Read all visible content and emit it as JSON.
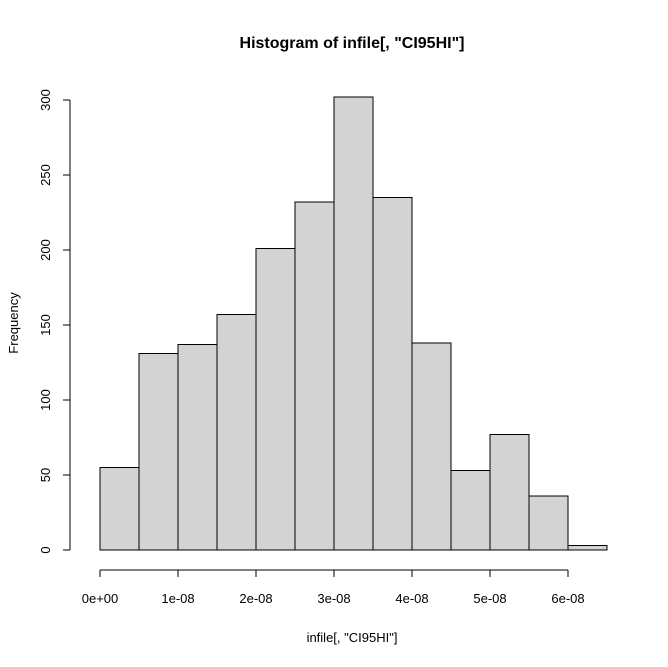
{
  "chart_data": {
    "type": "bar",
    "title": "Histogram of infile[, \"CI95HI\"]",
    "xlabel": "infile[, \"CI95HI\"]",
    "ylabel": "Frequency",
    "bins": [
      {
        "start": 0.0,
        "end": 5e-09,
        "count": 55
      },
      {
        "start": 5e-09,
        "end": 1e-08,
        "count": 131
      },
      {
        "start": 1e-08,
        "end": 1.5e-08,
        "count": 137
      },
      {
        "start": 1.5e-08,
        "end": 2e-08,
        "count": 157
      },
      {
        "start": 2e-08,
        "end": 2.5e-08,
        "count": 201
      },
      {
        "start": 2.5e-08,
        "end": 3e-08,
        "count": 232
      },
      {
        "start": 3e-08,
        "end": 3.5e-08,
        "count": 302
      },
      {
        "start": 3.5e-08,
        "end": 4e-08,
        "count": 235
      },
      {
        "start": 4e-08,
        "end": 4.5e-08,
        "count": 138
      },
      {
        "start": 4.5e-08,
        "end": 5e-08,
        "count": 53
      },
      {
        "start": 5e-08,
        "end": 5.5e-08,
        "count": 77
      },
      {
        "start": 5.5e-08,
        "end": 6e-08,
        "count": 36
      },
      {
        "start": 6e-08,
        "end": 6.5e-08,
        "count": 3
      }
    ],
    "x_ticks": [
      {
        "value": 0.0,
        "label": "0e+00"
      },
      {
        "value": 1e-08,
        "label": "1e-08"
      },
      {
        "value": 2e-08,
        "label": "2e-08"
      },
      {
        "value": 3e-08,
        "label": "3e-08"
      },
      {
        "value": 4e-08,
        "label": "4e-08"
      },
      {
        "value": 5e-08,
        "label": "5e-08"
      },
      {
        "value": 6e-08,
        "label": "6e-08"
      }
    ],
    "y_ticks": [
      {
        "value": 0,
        "label": "0"
      },
      {
        "value": 50,
        "label": "50"
      },
      {
        "value": 100,
        "label": "100"
      },
      {
        "value": 150,
        "label": "150"
      },
      {
        "value": 200,
        "label": "200"
      },
      {
        "value": 250,
        "label": "250"
      },
      {
        "value": 300,
        "label": "300"
      }
    ],
    "xlim": [
      0,
      6.5e-08
    ],
    "ylim": [
      0,
      300
    ],
    "grid": false,
    "bar_color": "#d3d3d3",
    "border_color": "#000000"
  }
}
